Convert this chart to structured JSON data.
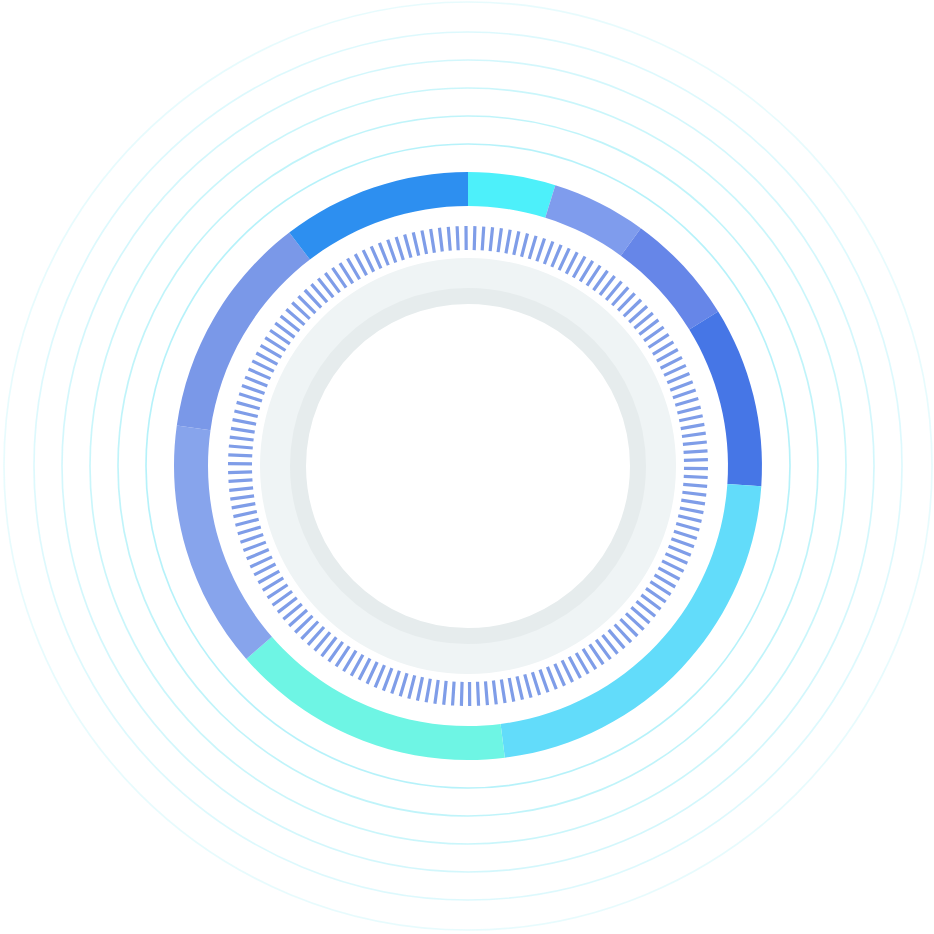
{
  "chart_data": {
    "type": "donut",
    "categories": [
      null,
      null,
      null,
      null,
      null,
      null,
      null,
      null,
      null
    ],
    "values": [
      4.8,
      5.2,
      6.2,
      9.9,
      21.9,
      15.6,
      13.6,
      12.4,
      10.4
    ],
    "colors": [
      "#4df0fa",
      "#7f9ced",
      "#6686e8",
      "#4676e6",
      "#62dcfa",
      "#6ef5e4",
      "#87a4ec",
      "#7a98e8",
      "#2d8ff0"
    ]
  }
}
